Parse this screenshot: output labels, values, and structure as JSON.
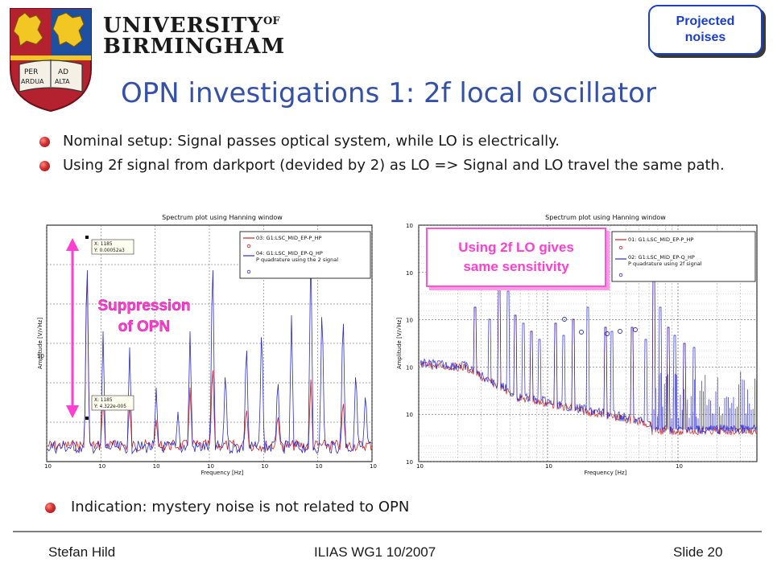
{
  "header": {
    "university_line1": "UNIVERSITY",
    "university_of": "OF",
    "university_line2": "BIRMINGHAM",
    "crest_motto_left": "PER ARDUA",
    "crest_motto_right": "AD ALTA",
    "tag_label": "Projected\nnoises"
  },
  "title": "OPN investigations 1: 2f local oscillator",
  "bullets": [
    {
      "text": "Nominal setup: Signal passes optical system, while LO is electrically."
    },
    {
      "text": "Using 2f signal from darkport (devided by 2) as LO => Signal and LO travel the same path."
    },
    {
      "text": "Indication: mystery noise is not related to OPN"
    }
  ],
  "annotations": {
    "suppression": "Suppression\nof OPN",
    "callout": "Using 2f LO gives\nsame sensitivity"
  },
  "colors": {
    "title": "#3550a8",
    "tag_border": "#1a3fd0",
    "annotation": "#ff3fd0",
    "trace_red": "#cc1f1f",
    "trace_blue": "#2a2ad0"
  },
  "chart_data": [
    {
      "type": "line",
      "title": "Spectrum plot using Hanning window",
      "xlabel": "Frequency [Hz]",
      "ylabel": "Amplitude [V/√Hz]",
      "y_tick_label": "10",
      "x_tick_labels": [
        "10",
        "10",
        "10",
        "10",
        "10",
        "10",
        "10"
      ],
      "cursors": [
        {
          "x": "X: 1185",
          "y": "Y: 0.00052a3"
        },
        {
          "x": "X: 1185",
          "y": "Y: 4.322e-005"
        }
      ],
      "series": [
        {
          "name": "03: G1:LSC_MID_EP-P_HP",
          "color": "#cc1f1f"
        },
        {
          "name": "04: G1:LSC_MID_EP-Q_HP P quadrature using the 2 signal",
          "color": "#2a2ad0"
        }
      ]
    },
    {
      "type": "line",
      "title": "Spectrum plot using Hanning window",
      "xlabel": "Frequency [Hz]",
      "ylabel": "Amplitude [V/√Hz]",
      "x_scale": "log",
      "y_scale": "log",
      "y_tick_labels": [
        "10",
        "10",
        "10",
        "10",
        "10",
        "10"
      ],
      "x_tick_labels": [
        "10",
        "10",
        "10"
      ],
      "series": [
        {
          "name": "01: G1:LSC_MID_EP-P_HP",
          "color": "#cc1f1f"
        },
        {
          "name": "02: G1:LSC_MID_EP-Q_HP P quadrature using 2f signal",
          "color": "#2a2ad0"
        }
      ]
    }
  ],
  "footer": {
    "author": "Stefan Hild",
    "event": "ILIAS WG1 10/2007",
    "slide": "Slide 20"
  }
}
